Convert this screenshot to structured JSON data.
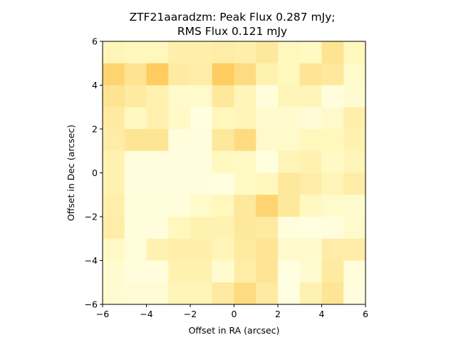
{
  "chart_data": {
    "type": "heatmap",
    "title_lines": [
      "ZTF21aaradzm: Peak Flux 0.287 mJy;",
      "RMS Flux 0.121 mJy"
    ],
    "xlabel": "Offset in RA (arcsec)",
    "ylabel": "Offset in Dec (arcsec)",
    "xlim": [
      -6,
      6
    ],
    "ylim": [
      -6,
      6
    ],
    "xticks": [
      -6,
      -4,
      -2,
      0,
      2,
      4,
      6
    ],
    "yticks": [
      -6,
      -4,
      -2,
      0,
      2,
      4,
      6
    ],
    "xtick_labels": [
      "−6",
      "−4",
      "−2",
      "0",
      "2",
      "4",
      "6"
    ],
    "ytick_labels": [
      "−6",
      "−4",
      "−2",
      "0",
      "2",
      "4",
      "6"
    ],
    "colormap": "YlOrBr",
    "colormap_stops": [
      "#ffffe5",
      "#fff7bc",
      "#fee391",
      "#fec44f",
      "#fe9929",
      "#ec7014"
    ],
    "grid": false,
    "rows_top_to_bottom": [
      [
        0.22,
        0.2,
        0.2,
        0.28,
        0.28,
        0.3,
        0.28,
        0.35,
        0.2,
        0.16,
        0.4,
        0.2
      ],
      [
        0.5,
        0.4,
        0.55,
        0.33,
        0.3,
        0.55,
        0.45,
        0.25,
        0.2,
        0.38,
        0.35,
        0.13
      ],
      [
        0.4,
        0.33,
        0.25,
        0.12,
        0.12,
        0.35,
        0.22,
        0.05,
        0.22,
        0.22,
        0.05,
        0.1
      ],
      [
        0.33,
        0.18,
        0.27,
        0.15,
        0.03,
        0.2,
        0.22,
        0.11,
        0.11,
        0.08,
        0.12,
        0.28
      ],
      [
        0.3,
        0.38,
        0.38,
        0.05,
        0.05,
        0.35,
        0.45,
        0.13,
        0.13,
        0.2,
        0.2,
        0.25
      ],
      [
        0.25,
        0.05,
        0.05,
        0.05,
        0.05,
        0.18,
        0.16,
        0.03,
        0.22,
        0.25,
        0.15,
        0.22
      ],
      [
        0.25,
        0.05,
        0.05,
        0.05,
        0.05,
        0.03,
        0.15,
        0.2,
        0.35,
        0.3,
        0.22,
        0.3
      ],
      [
        0.28,
        0.06,
        0.06,
        0.05,
        0.13,
        0.2,
        0.35,
        0.5,
        0.35,
        0.18,
        0.13,
        0.1
      ],
      [
        0.3,
        0.05,
        0.05,
        0.2,
        0.25,
        0.25,
        0.35,
        0.33,
        0.05,
        0.03,
        0.05,
        0.12
      ],
      [
        0.15,
        0.06,
        0.25,
        0.28,
        0.28,
        0.22,
        0.33,
        0.38,
        0.12,
        0.12,
        0.3,
        0.3
      ],
      [
        0.1,
        0.05,
        0.05,
        0.25,
        0.25,
        0.1,
        0.3,
        0.38,
        0.02,
        0.1,
        0.33,
        0.05
      ],
      [
        0.1,
        0.08,
        0.08,
        0.22,
        0.22,
        0.33,
        0.45,
        0.33,
        0.02,
        0.25,
        0.38,
        0.04
      ]
    ]
  }
}
